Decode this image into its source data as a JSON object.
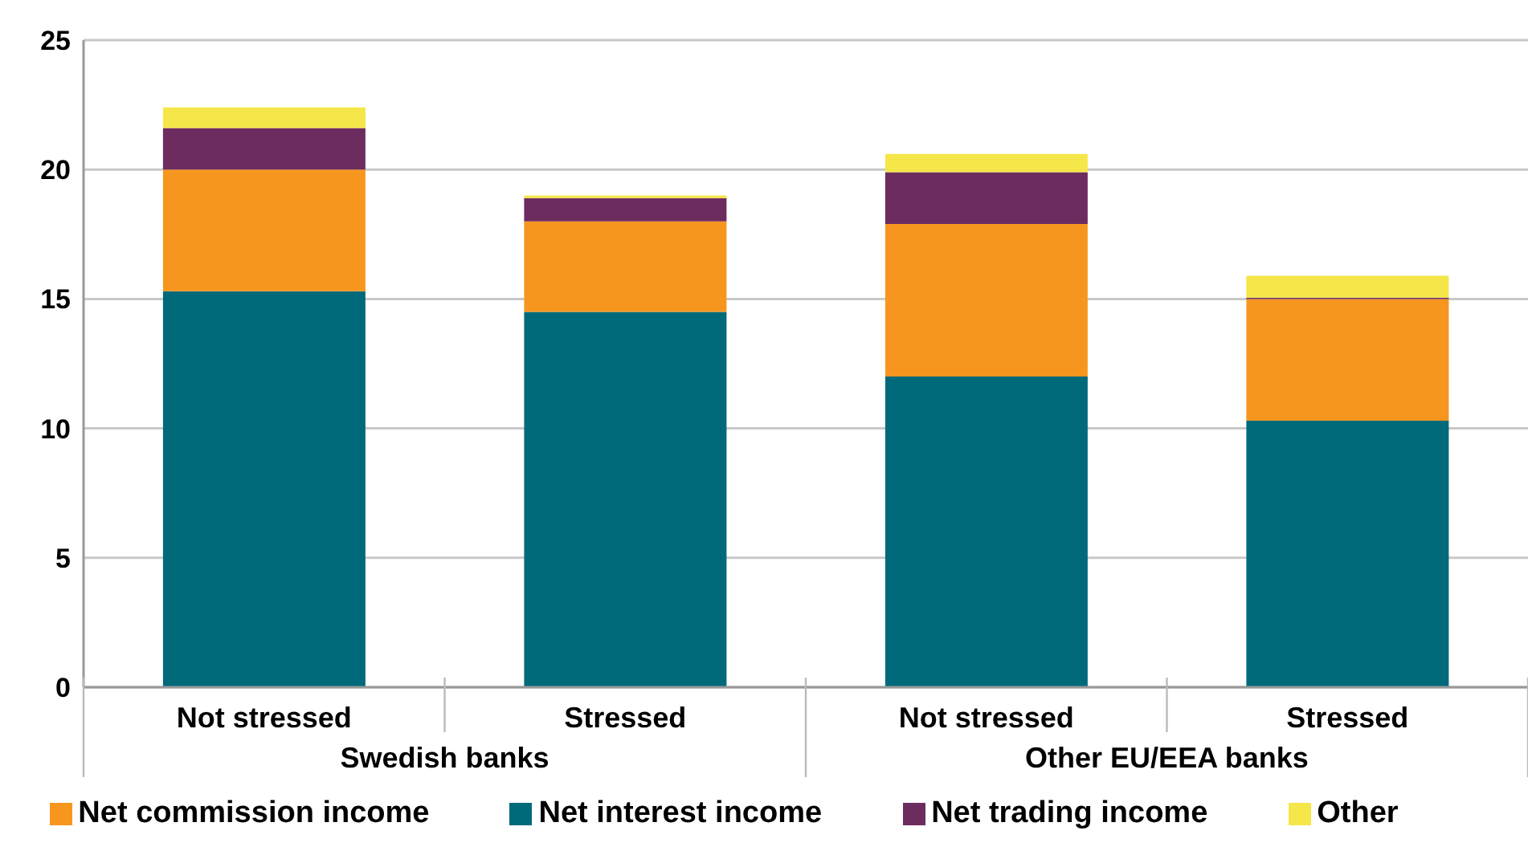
{
  "chart_data": {
    "type": "bar",
    "stacked": true,
    "categories": [
      "Not stressed",
      "Stressed",
      "Not stressed",
      "Stressed"
    ],
    "annotations": [
      "Swedish banks",
      "Other EU/EEA banks"
    ],
    "series": [
      {
        "name": "Net interest income",
        "color": "#006a7a",
        "values": [
          15.3,
          14.5,
          12.0,
          10.3
        ]
      },
      {
        "name": "Net commission income",
        "color": "#f7961f",
        "values": [
          4.7,
          3.5,
          5.9,
          4.7
        ]
      },
      {
        "name": "Net trading income",
        "color": "#6d2c60",
        "values": [
          1.6,
          0.9,
          2.0,
          0.05
        ]
      },
      {
        "name": "Other",
        "color": "#f5e649",
        "values": [
          0.8,
          0.1,
          0.7,
          0.85
        ]
      }
    ],
    "ylim": [
      0,
      25
    ],
    "yticks": [
      0,
      5,
      10,
      15,
      20,
      25
    ],
    "grid": "y",
    "legend": "bottom"
  }
}
